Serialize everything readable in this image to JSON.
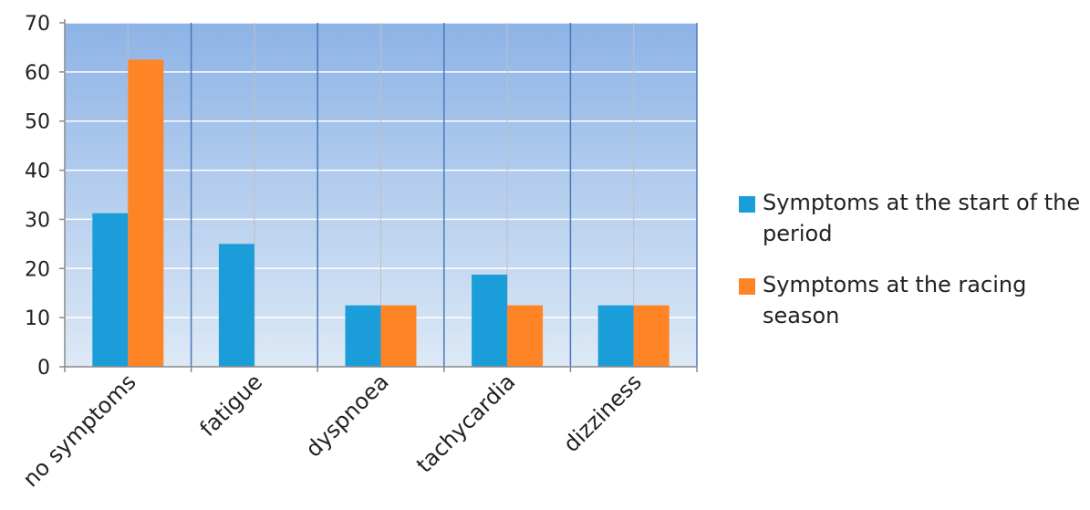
{
  "chart_data": {
    "type": "bar",
    "categories": [
      "no symptoms",
      "fatigue",
      "dyspnoea",
      "tachycardia",
      "dizziness"
    ],
    "series": [
      {
        "name": "Symptoms at the start of the period",
        "values": [
          31.25,
          25,
          12.5,
          18.75,
          12.5
        ],
        "color": "#1b9dd9"
      },
      {
        "name": "Symptoms at the racing season",
        "values": [
          62.5,
          0,
          12.5,
          12.5,
          12.5
        ],
        "color": "#ff8426"
      }
    ],
    "ylim": [
      0,
      70
    ],
    "yticks": [
      0,
      10,
      20,
      30,
      40,
      50,
      60,
      70
    ],
    "grid": true,
    "legend_position": "right",
    "background_gradient": [
      "#8db3e6",
      "#dde9f6"
    ]
  }
}
